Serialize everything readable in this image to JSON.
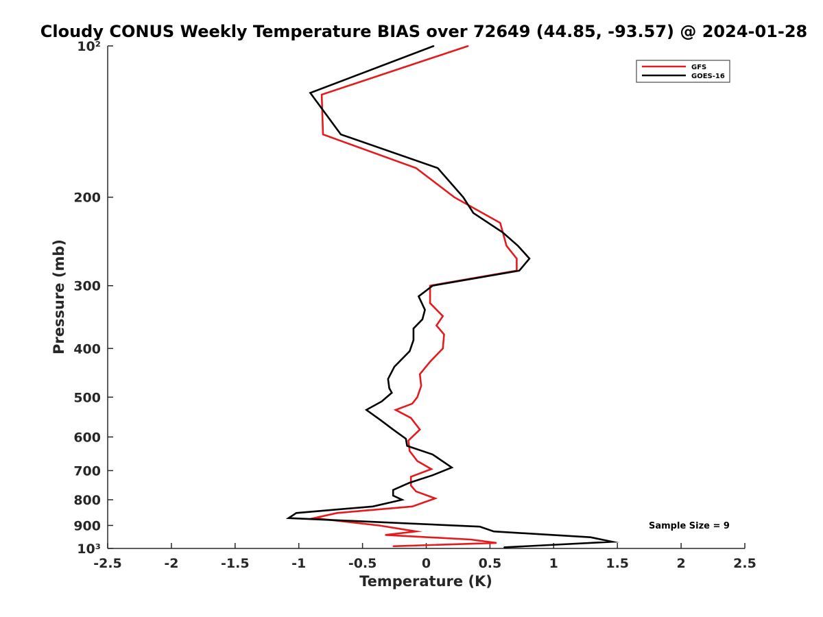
{
  "chart_data": {
    "type": "line",
    "title": "Cloudy CONUS Weekly Temperature BIAS over 72649 (44.85, -93.57) @ 2024-01-28",
    "xlabel": "Temperature (K)",
    "ylabel": "Pressure (mb)",
    "xlim": [
      -2.5,
      2.5
    ],
    "ylim": [
      100,
      1000
    ],
    "y_scale": "log",
    "y_reversed": true,
    "grid": false,
    "x_ticks": [
      -2.5,
      -2,
      -1.5,
      -1,
      -0.5,
      0,
      0.5,
      1,
      1.5,
      2,
      2.5
    ],
    "x_tick_labels": [
      "-2.5",
      "-2",
      "-1.5",
      "-1",
      "-0.5",
      "0",
      "0.5",
      "1",
      "1.5",
      "2",
      "2.5"
    ],
    "y_ticks": [
      100,
      200,
      300,
      400,
      500,
      600,
      700,
      800,
      900,
      1000
    ],
    "y_tick_labels": [
      "10²",
      "200",
      "300",
      "400",
      "500",
      "600",
      "700",
      "800",
      "900",
      "10³"
    ],
    "legend_position": "top-right",
    "series": [
      {
        "name": "GFS",
        "color": "#e41a1c",
        "points": [
          [
            0.33,
            100
          ],
          [
            -0.82,
            125
          ],
          [
            -0.81,
            150
          ],
          [
            -0.08,
            175
          ],
          [
            0.22,
            200
          ],
          [
            0.58,
            225
          ],
          [
            0.63,
            250
          ],
          [
            0.71,
            265
          ],
          [
            0.71,
            280
          ],
          [
            0.03,
            300
          ],
          [
            0.03,
            325
          ],
          [
            0.13,
            345
          ],
          [
            0.08,
            360
          ],
          [
            0.14,
            375
          ],
          [
            0.13,
            400
          ],
          [
            0.03,
            425
          ],
          [
            -0.05,
            450
          ],
          [
            -0.04,
            475
          ],
          [
            -0.07,
            500
          ],
          [
            -0.11,
            515
          ],
          [
            -0.24,
            530
          ],
          [
            -0.12,
            550
          ],
          [
            -0.05,
            580
          ],
          [
            -0.14,
            610
          ],
          [
            -0.13,
            640
          ],
          [
            -0.07,
            670
          ],
          [
            0.04,
            695
          ],
          [
            -0.12,
            720
          ],
          [
            -0.12,
            750
          ],
          [
            -0.08,
            770
          ],
          [
            0.07,
            795
          ],
          [
            -0.11,
            825
          ],
          [
            -0.7,
            850
          ],
          [
            -0.88,
            870
          ],
          [
            -0.37,
            900
          ],
          [
            -0.08,
            925
          ],
          [
            -0.32,
            940
          ],
          [
            0.35,
            960
          ],
          [
            0.55,
            975
          ],
          [
            -0.26,
            990
          ]
        ]
      },
      {
        "name": "GOES-16",
        "color": "#000000",
        "points": [
          [
            0.06,
            100
          ],
          [
            -0.91,
            124
          ],
          [
            -0.67,
            150
          ],
          [
            0.09,
            175
          ],
          [
            0.29,
            200
          ],
          [
            0.37,
            215
          ],
          [
            0.6,
            235
          ],
          [
            0.72,
            250
          ],
          [
            0.81,
            265
          ],
          [
            0.73,
            280
          ],
          [
            0.05,
            300
          ],
          [
            -0.06,
            315
          ],
          [
            -0.01,
            335
          ],
          [
            -0.03,
            350
          ],
          [
            -0.1,
            365
          ],
          [
            -0.1,
            385
          ],
          [
            -0.13,
            405
          ],
          [
            -0.25,
            435
          ],
          [
            -0.3,
            460
          ],
          [
            -0.29,
            480
          ],
          [
            -0.27,
            490
          ],
          [
            -0.35,
            510
          ],
          [
            -0.47,
            530
          ],
          [
            -0.36,
            555
          ],
          [
            -0.26,
            580
          ],
          [
            -0.16,
            605
          ],
          [
            -0.15,
            625
          ],
          [
            0.05,
            650
          ],
          [
            0.2,
            690
          ],
          [
            0.05,
            715
          ],
          [
            -0.13,
            740
          ],
          [
            -0.26,
            765
          ],
          [
            -0.26,
            785
          ],
          [
            -0.19,
            800
          ],
          [
            -0.42,
            825
          ],
          [
            -1.02,
            850
          ],
          [
            -1.08,
            870
          ],
          [
            0.42,
            905
          ],
          [
            0.53,
            925
          ],
          [
            1.29,
            950
          ],
          [
            1.46,
            970
          ],
          [
            0.61,
            995
          ]
        ]
      }
    ],
    "annotation": "Sample Size = 9"
  }
}
